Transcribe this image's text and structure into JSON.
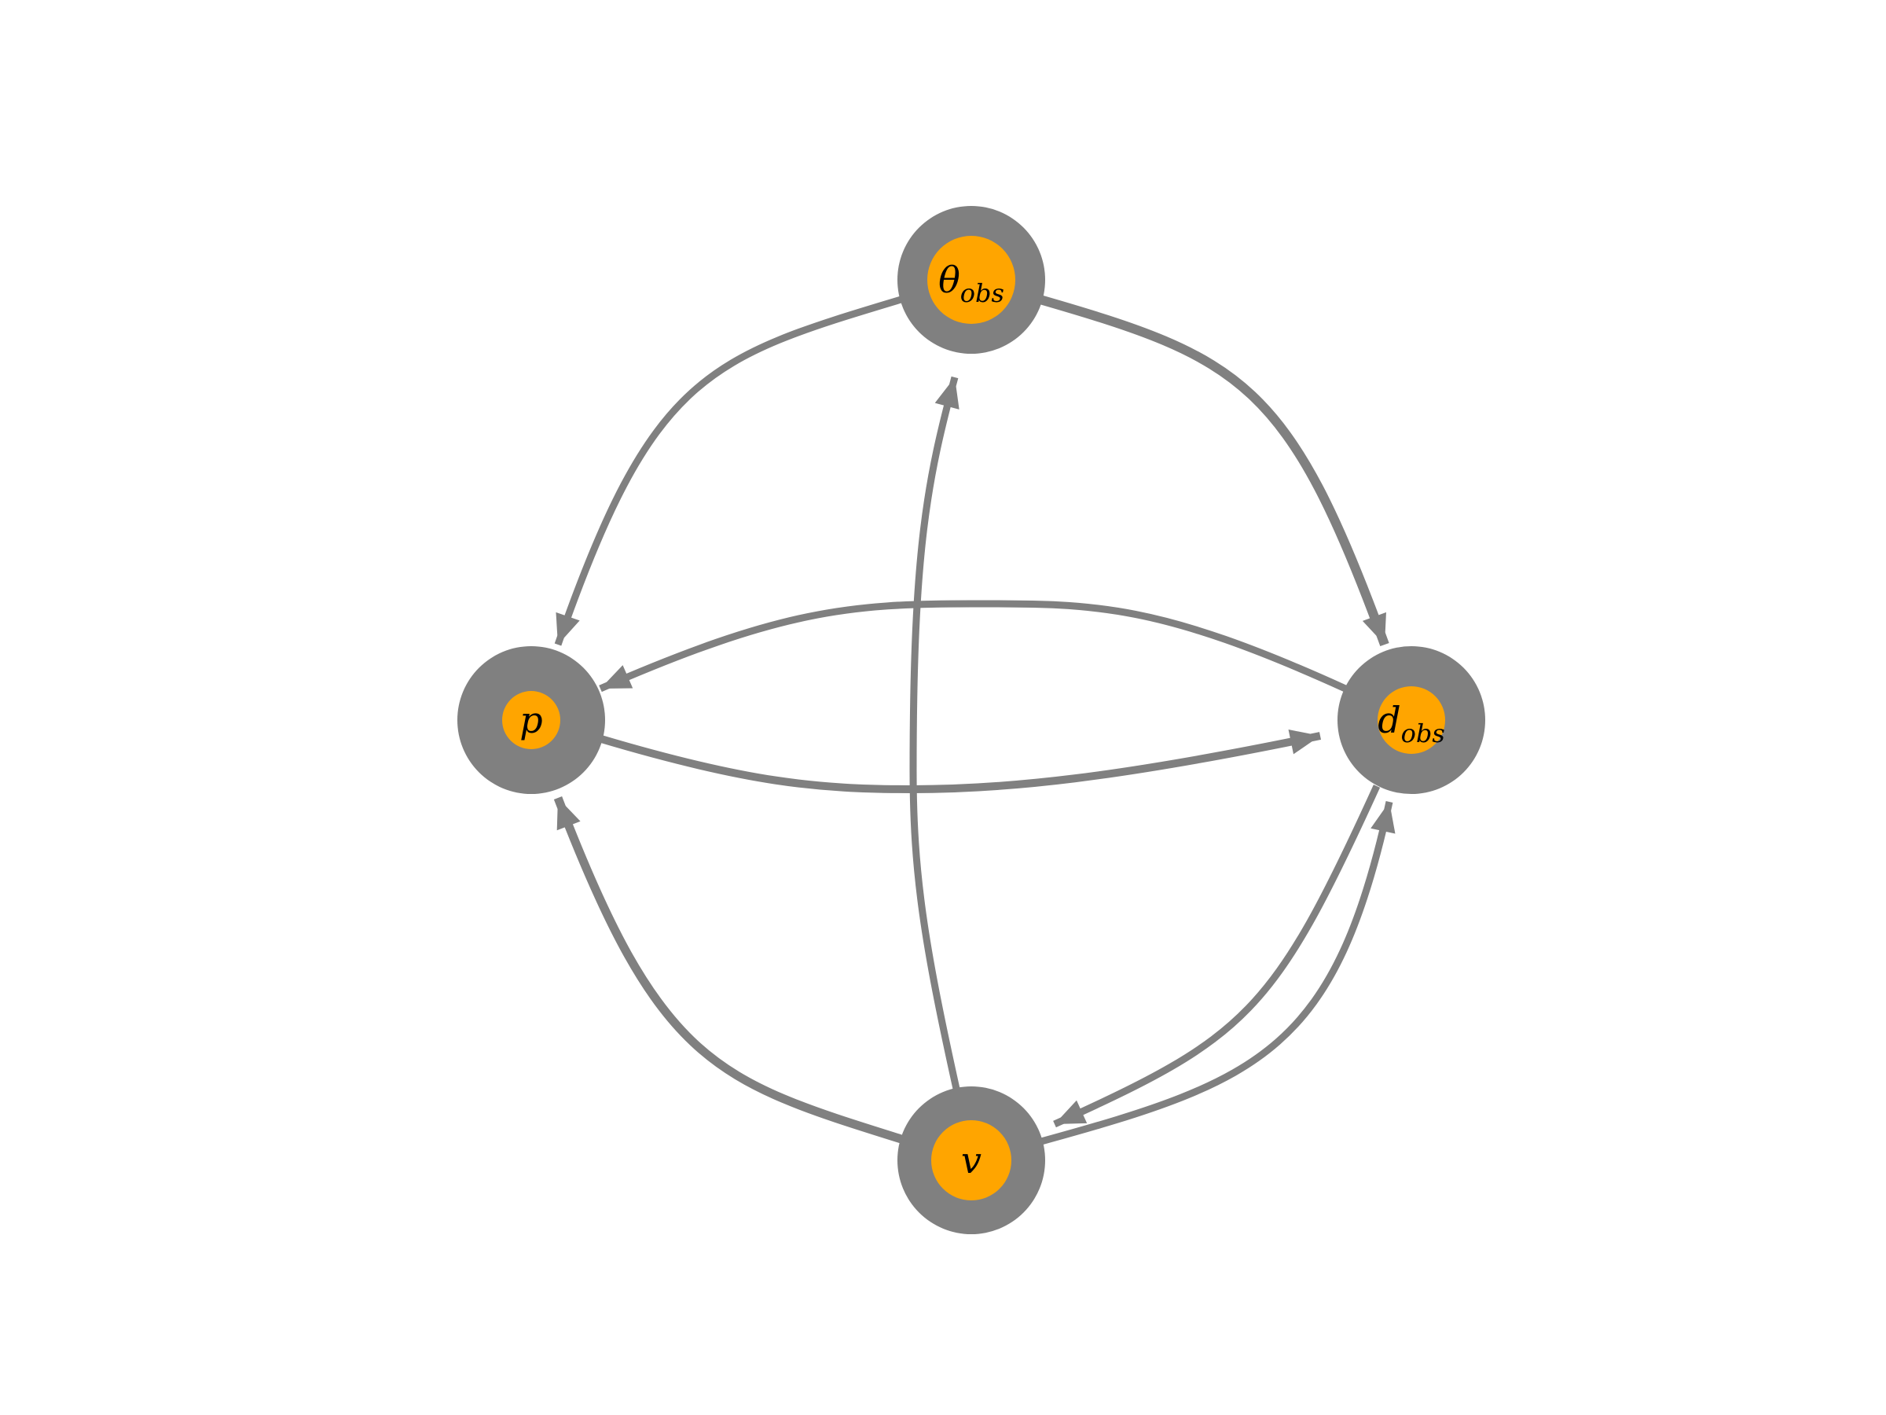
{
  "colors": {
    "edge": "#808080",
    "node_ring": "#808080",
    "node_fill": "#FFA500",
    "label": "#000000",
    "background": "#FFFFFF"
  },
  "nodes": [
    {
      "id": "theta_obs",
      "label_main": "θ",
      "label_sub": "obs"
    },
    {
      "id": "p",
      "label_main": "p",
      "label_sub": ""
    },
    {
      "id": "d_obs",
      "label_main": "d",
      "label_sub": "obs"
    },
    {
      "id": "v",
      "label_main": "v",
      "label_sub": ""
    }
  ],
  "edges": [
    {
      "from": "theta_obs",
      "to": "p"
    },
    {
      "from": "theta_obs",
      "to": "d_obs"
    },
    {
      "from": "d_obs",
      "to": "p"
    },
    {
      "from": "p",
      "to": "d_obs"
    },
    {
      "from": "v",
      "to": "theta_obs"
    },
    {
      "from": "v",
      "to": "p"
    },
    {
      "from": "d_obs",
      "to": "v"
    },
    {
      "from": "v",
      "to": "d_obs"
    }
  ]
}
